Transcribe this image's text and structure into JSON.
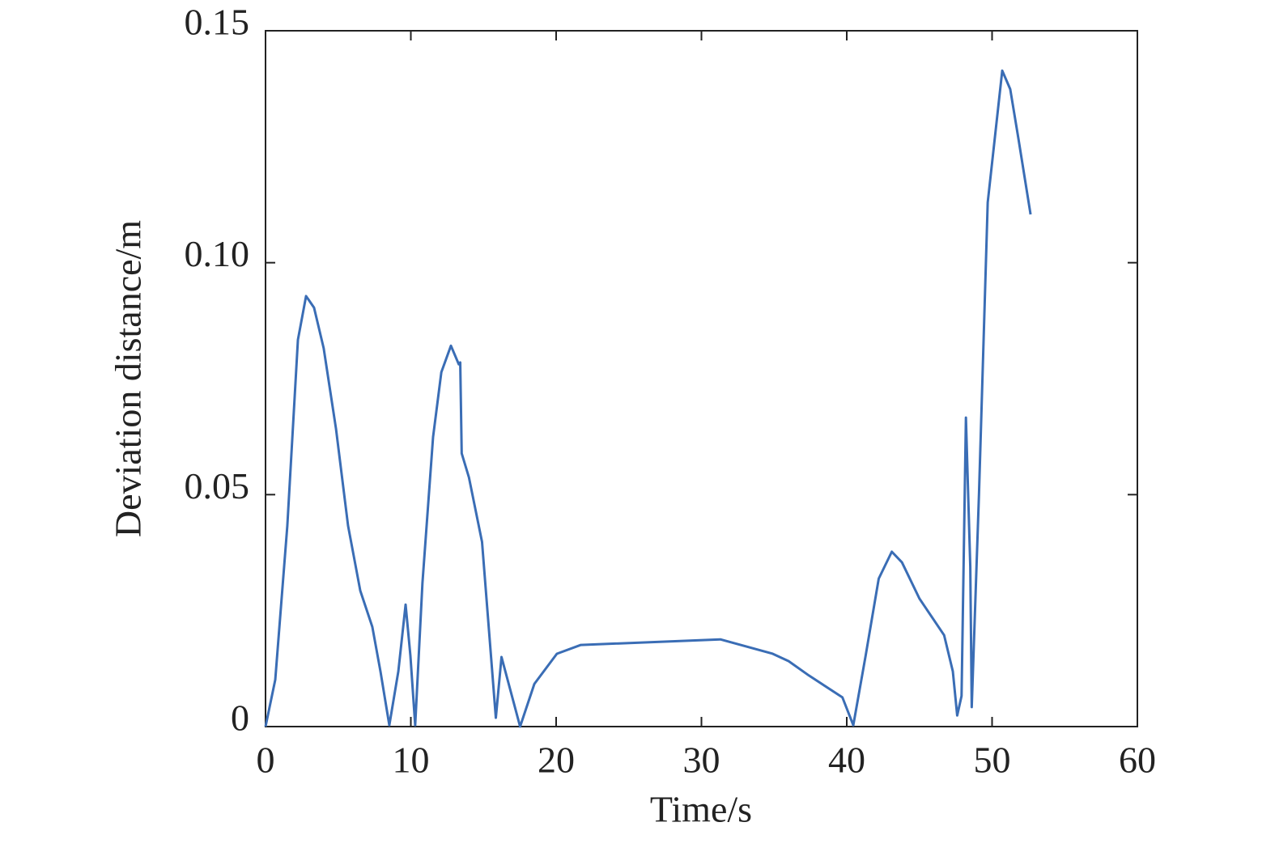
{
  "chart_data": {
    "type": "line",
    "xlabel": "Time/s",
    "ylabel": "Deviation distance/m",
    "x": [
      0,
      0.67,
      1.5,
      2.23,
      2.79,
      3.34,
      4.0,
      4.85,
      5.68,
      6.52,
      7.35,
      7.91,
      8.52,
      9.14,
      9.64,
      9.97,
      10.3,
      10.8,
      11.53,
      12.1,
      12.76,
      13.3,
      13.4,
      13.5,
      14.0,
      14.9,
      15.85,
      16.24,
      17.52,
      18.5,
      20.05,
      21.7,
      31.3,
      34.9,
      36.0,
      37.4,
      39.7,
      40.45,
      41.3,
      42.2,
      43.1,
      43.8,
      45.0,
      46.7,
      47.3,
      47.6,
      47.9,
      48.2,
      48.5,
      48.6,
      49.1,
      49.7,
      50.7,
      51.25,
      51.8,
      52.65
    ],
    "series": [
      {
        "color": "#3a6db5",
        "values": [
          0,
          0.0101,
          0.0433,
          0.0834,
          0.0928,
          0.0903,
          0.0816,
          0.0642,
          0.0433,
          0.0293,
          0.0215,
          0.0119,
          0.0003,
          0.0119,
          0.0263,
          0.0153,
          0.0003,
          0.031,
          0.0624,
          0.0764,
          0.0821,
          0.0781,
          0.0785,
          0.0589,
          0.0537,
          0.0398,
          0.0019,
          0.015,
          0,
          0.0092,
          0.0157,
          0.0176,
          0.0188,
          0.0157,
          0.0141,
          0.011,
          0.0063,
          0.0003,
          0.0153,
          0.0319,
          0.0377,
          0.0354,
          0.0276,
          0.0197,
          0.0119,
          0.0024,
          0.0066,
          0.0666,
          0.0345,
          0.0042,
          0.0502,
          0.113,
          0.1414,
          0.1374,
          0.127,
          0.1104
        ]
      }
    ],
    "xlim": [
      0,
      60
    ],
    "xticks": [
      0,
      10,
      20,
      30,
      40,
      50,
      60
    ],
    "ylim": [
      0,
      0.15
    ],
    "yticks": [
      0,
      0.05,
      {
        "value": 0.1,
        "label": "0.10"
      },
      0.15
    ]
  }
}
